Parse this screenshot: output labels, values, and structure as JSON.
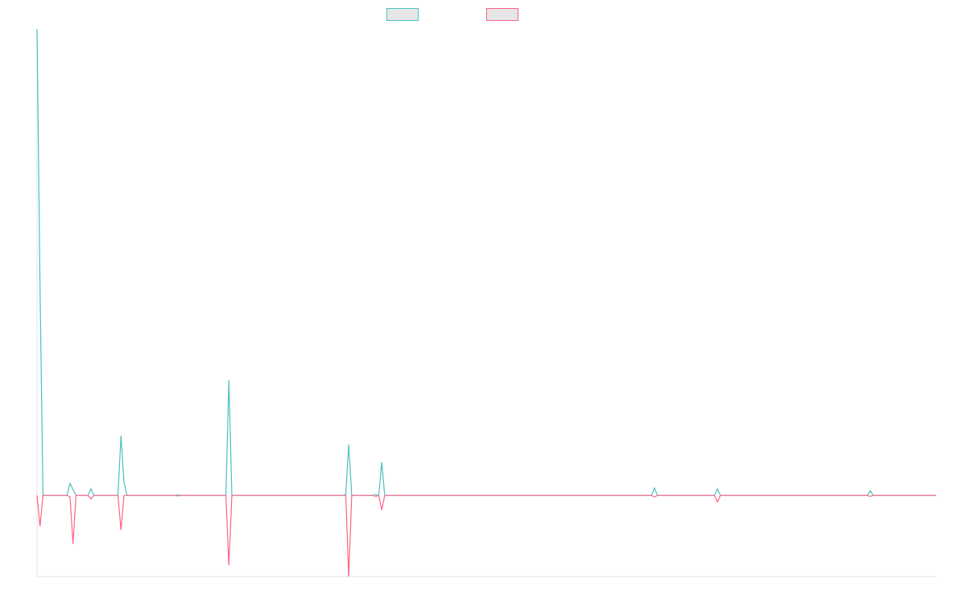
{
  "chart_data": {
    "type": "line",
    "title": "",
    "xlabel": "",
    "ylabel": "",
    "x_count": 301,
    "xlim": [
      0,
      300
    ],
    "ylim": [
      -17.4,
      100
    ],
    "grid": false,
    "legend_position": "top",
    "series": [
      {
        "color": "#4bc0c0",
        "legend_fill": "#e6e6e6",
        "points": [
          {
            "x": 0,
            "y": 100
          },
          {
            "x": 1,
            "y": 45
          },
          {
            "x": 2,
            "y": 0
          },
          {
            "x": 10,
            "y": 0
          },
          {
            "x": 11,
            "y": 2.6
          },
          {
            "x": 12,
            "y": 1.3
          },
          {
            "x": 13,
            "y": 0
          },
          {
            "x": 17,
            "y": 0
          },
          {
            "x": 18,
            "y": 1.4
          },
          {
            "x": 19,
            "y": 0
          },
          {
            "x": 27,
            "y": 0
          },
          {
            "x": 28,
            "y": 12.8
          },
          {
            "x": 29,
            "y": 2.9
          },
          {
            "x": 30,
            "y": 0
          },
          {
            "x": 46,
            "y": 0
          },
          {
            "x": 47,
            "y": 0.1
          },
          {
            "x": 48,
            "y": 0
          },
          {
            "x": 63,
            "y": 0
          },
          {
            "x": 64,
            "y": 24.7
          },
          {
            "x": 65,
            "y": 0
          },
          {
            "x": 102,
            "y": 0
          },
          {
            "x": 103,
            "y": 0.2
          },
          {
            "x": 104,
            "y": 10.9
          },
          {
            "x": 105,
            "y": 0
          },
          {
            "x": 112,
            "y": 0
          },
          {
            "x": 113,
            "y": 0.2
          },
          {
            "x": 114,
            "y": 0
          },
          {
            "x": 115,
            "y": 7.1
          },
          {
            "x": 116,
            "y": 0
          },
          {
            "x": 205,
            "y": 0
          },
          {
            "x": 206,
            "y": 1.6
          },
          {
            "x": 207,
            "y": 0
          },
          {
            "x": 226,
            "y": 0
          },
          {
            "x": 227,
            "y": 1.4
          },
          {
            "x": 228,
            "y": 0
          },
          {
            "x": 277,
            "y": 0
          },
          {
            "x": 278,
            "y": 1.0
          },
          {
            "x": 279,
            "y": 0
          },
          {
            "x": 300,
            "y": 0
          }
        ]
      },
      {
        "color": "#ff6384",
        "legend_fill": "#e6e6e6",
        "points": [
          {
            "x": 0,
            "y": 0
          },
          {
            "x": 1,
            "y": -6.6
          },
          {
            "x": 2,
            "y": 0
          },
          {
            "x": 10,
            "y": 0
          },
          {
            "x": 11,
            "y": -0.3
          },
          {
            "x": 12,
            "y": -10.4
          },
          {
            "x": 13,
            "y": 0
          },
          {
            "x": 17,
            "y": 0
          },
          {
            "x": 18,
            "y": -0.7
          },
          {
            "x": 19,
            "y": 0
          },
          {
            "x": 27,
            "y": 0
          },
          {
            "x": 28,
            "y": -7.4
          },
          {
            "x": 29,
            "y": 0
          },
          {
            "x": 46,
            "y": 0
          },
          {
            "x": 47,
            "y": -0.1
          },
          {
            "x": 48,
            "y": 0
          },
          {
            "x": 63,
            "y": 0
          },
          {
            "x": 64,
            "y": -15.0
          },
          {
            "x": 65,
            "y": 0
          },
          {
            "x": 103,
            "y": 0
          },
          {
            "x": 104,
            "y": -17.4
          },
          {
            "x": 105,
            "y": 0
          },
          {
            "x": 112,
            "y": 0
          },
          {
            "x": 113,
            "y": -0.2
          },
          {
            "x": 114,
            "y": 0
          },
          {
            "x": 115,
            "y": -3.1
          },
          {
            "x": 116,
            "y": 0
          },
          {
            "x": 205,
            "y": 0
          },
          {
            "x": 206,
            "y": -0.3
          },
          {
            "x": 207,
            "y": 0
          },
          {
            "x": 226,
            "y": 0
          },
          {
            "x": 227,
            "y": -1.4
          },
          {
            "x": 228,
            "y": 0
          },
          {
            "x": 277,
            "y": 0
          },
          {
            "x": 278,
            "y": -0.2
          },
          {
            "x": 279,
            "y": 0
          },
          {
            "x": 300,
            "y": 0
          }
        ]
      }
    ]
  }
}
